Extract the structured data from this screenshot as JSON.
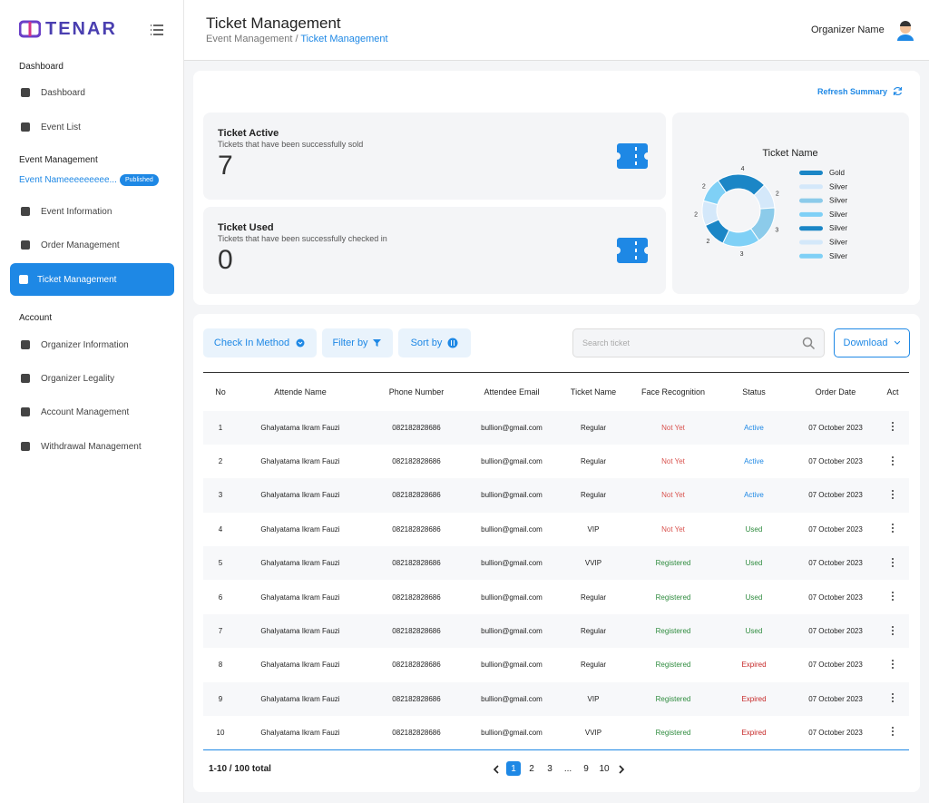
{
  "sidebar": {
    "logo": "TENAR",
    "sections": [
      {
        "title": "Dashboard",
        "items": [
          "Dashboard",
          "Event List"
        ]
      },
      {
        "title": "Event Management",
        "event": "Event Nameeeeeeeee...",
        "badge": "Published",
        "items": [
          "Event Information",
          "Order Management",
          "Ticket Management"
        ]
      },
      {
        "title": "Account",
        "items": [
          "Organizer Information",
          "Organizer Legality",
          "Account Management",
          "Withdrawal Management"
        ]
      }
    ]
  },
  "header": {
    "title": "Ticket Management",
    "crumb_parent": "Event Management",
    "crumb_sep": "/",
    "crumb_current": "Ticket Management",
    "user": "Organizer Name"
  },
  "summary": {
    "refresh": "Refresh Summary",
    "cards": [
      {
        "title": "Ticket Active",
        "subtitle": "Tickets that have been successfully sold",
        "value": 7
      },
      {
        "title": "Ticket Used",
        "subtitle": "Tickets that have been successfully checked in",
        "value": 0
      }
    ]
  },
  "chart_data": {
    "type": "pie",
    "title": "Ticket Name",
    "donut": true,
    "categories": [
      "Gold",
      "Silver",
      "Silver",
      "Silver",
      "Silver",
      "Silver",
      "Silver"
    ],
    "values": [
      4,
      2,
      3,
      3,
      2,
      2,
      2
    ],
    "colors": [
      "#1b86c6",
      "#d4e8fa",
      "#8ccbea",
      "#7fd0f6",
      "#1b86c6",
      "#d4e8fa",
      "#7fd0f6"
    ]
  },
  "toolbar": {
    "check_in": "Check In Method",
    "filter": "Filter by",
    "sort": "Sort by",
    "search_placeholder": "Search ticket",
    "download": "Download"
  },
  "table": {
    "headers": [
      "No",
      "Attende Name",
      "Phone Number",
      "Attendee Email",
      "Ticket Name",
      "Face Recognition",
      "Status",
      "Order Date",
      "Act"
    ],
    "rows": [
      {
        "cells": [
          "1",
          "Ghalyatama Ikram Fauzi",
          "082182828686",
          "bullion@gmail.com",
          "Regular",
          "Not Yet",
          "Active",
          "07 October 2023"
        ],
        "face_color": "#d9534f",
        "status_color": "#1e88e5"
      },
      {
        "cells": [
          "2",
          "Ghalyatama Ikram Fauzi",
          "082182828686",
          "bullion@gmail.com",
          "Regular",
          "Not Yet",
          "Active",
          "07 October 2023"
        ],
        "face_color": "#d9534f",
        "status_color": "#1e88e5"
      },
      {
        "cells": [
          "3",
          "Ghalyatama Ikram Fauzi",
          "082182828686",
          "bullion@gmail.com",
          "Regular",
          "Not Yet",
          "Active",
          "07 October 2023"
        ],
        "face_color": "#d9534f",
        "status_color": "#1e88e5"
      },
      {
        "cells": [
          "4",
          "Ghalyatama Ikram Fauzi",
          "082182828686",
          "bullion@gmail.com",
          "VIP",
          "Not Yet",
          "Used",
          "07 October 2023"
        ],
        "face_color": "#d9534f",
        "status_color": "#2e8b3e"
      },
      {
        "cells": [
          "5",
          "Ghalyatama Ikram Fauzi",
          "082182828686",
          "bullion@gmail.com",
          "VVIP",
          "Registered",
          "Used",
          "07 October 2023"
        ],
        "face_color": "#2e8b3e",
        "status_color": "#2e8b3e"
      },
      {
        "cells": [
          "6",
          "Ghalyatama Ikram Fauzi",
          "082182828686",
          "bullion@gmail.com",
          "Regular",
          "Registered",
          "Used",
          "07 October 2023"
        ],
        "face_color": "#2e8b3e",
        "status_color": "#2e8b3e"
      },
      {
        "cells": [
          "7",
          "Ghalyatama Ikram Fauzi",
          "082182828686",
          "bullion@gmail.com",
          "Regular",
          "Registered",
          "Used",
          "07 October 2023"
        ],
        "face_color": "#2e8b3e",
        "status_color": "#2e8b3e"
      },
      {
        "cells": [
          "8",
          "Ghalyatama Ikram Fauzi",
          "082182828686",
          "bullion@gmail.com",
          "Regular",
          "Registered",
          "Expired",
          "07 October 2023"
        ],
        "face_color": "#2e8b3e",
        "status_color": "#c62828"
      },
      {
        "cells": [
          "9",
          "Ghalyatama Ikram Fauzi",
          "082182828686",
          "bullion@gmail.com",
          "VIP",
          "Registered",
          "Expired",
          "07 October 2023"
        ],
        "face_color": "#2e8b3e",
        "status_color": "#c62828"
      },
      {
        "cells": [
          "10",
          "Ghalyatama Ikram Fauzi",
          "082182828686",
          "bullion@gmail.com",
          "VVIP",
          "Registered",
          "Expired",
          "07 October 2023"
        ],
        "face_color": "#2e8b3e",
        "status_color": "#c62828"
      }
    ]
  },
  "pagination": {
    "total": "1-10 / 100 total",
    "pages": [
      "1",
      "2",
      "3",
      "...",
      "9",
      "10"
    ]
  }
}
